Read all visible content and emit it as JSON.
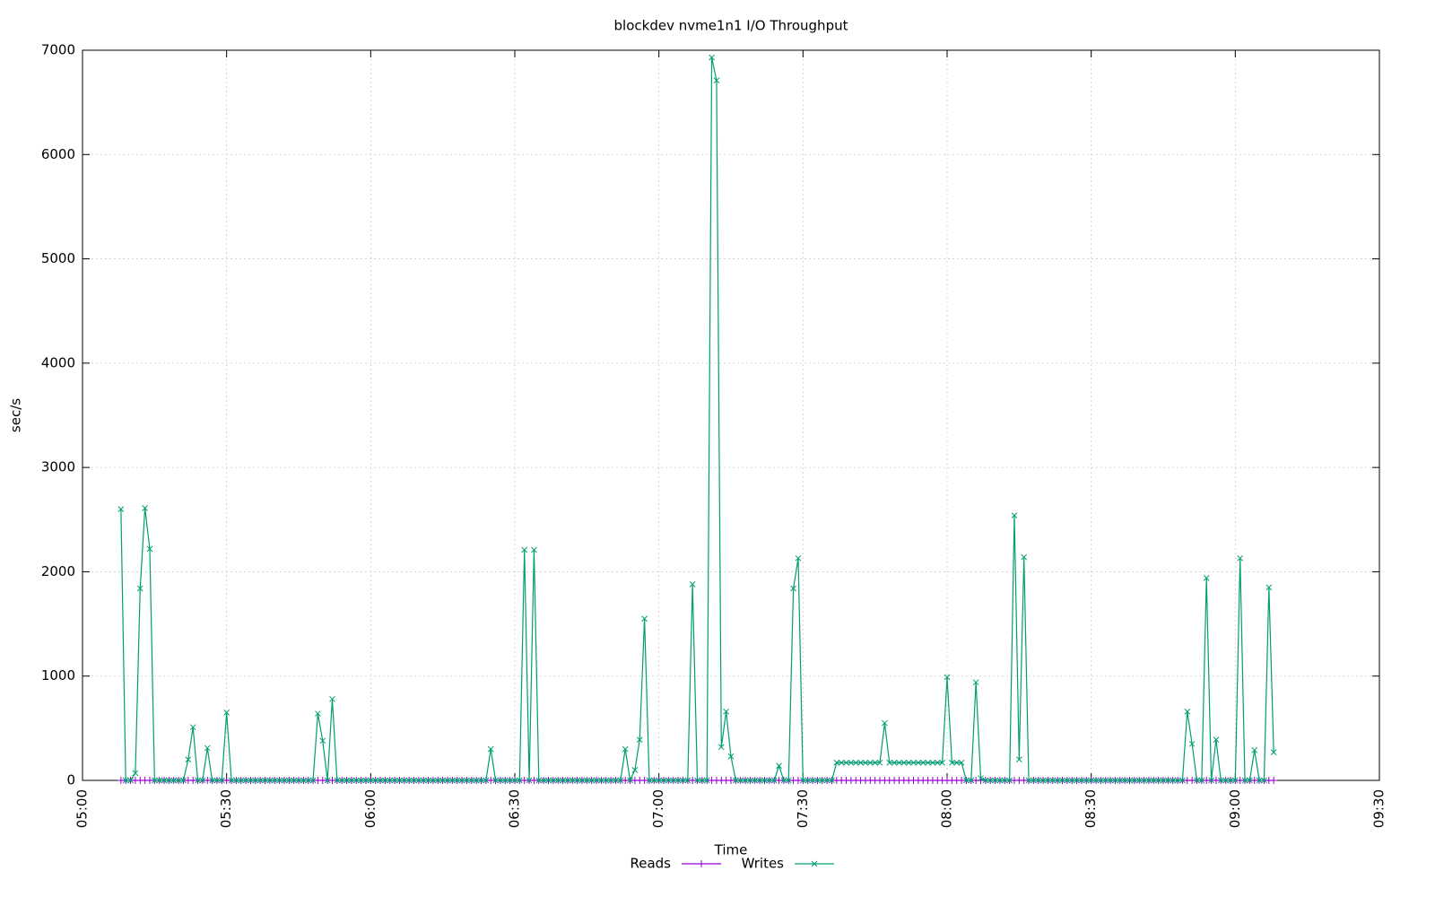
{
  "chart_data": {
    "type": "line",
    "title": "blockdev nvme1n1 I/O Throughput",
    "x_label": "Time",
    "y_label": "sec/s",
    "xlim": [
      "05:00",
      "09:30"
    ],
    "xticks": [
      "05:00",
      "05:30",
      "06:00",
      "06:30",
      "07:00",
      "07:30",
      "08:00",
      "08:30",
      "09:00",
      "09:30"
    ],
    "ylim": [
      0,
      7000
    ],
    "yticks": [
      0,
      1000,
      2000,
      3000,
      4000,
      5000,
      6000,
      7000
    ],
    "grid": true,
    "legend": "bottom",
    "x": [
      "05:08",
      "05:09",
      "05:10",
      "05:11",
      "05:12",
      "05:13",
      "05:14",
      "05:15",
      "05:16",
      "05:17",
      "05:18",
      "05:19",
      "05:20",
      "05:21",
      "05:22",
      "05:23",
      "05:24",
      "05:25",
      "05:26",
      "05:27",
      "05:28",
      "05:29",
      "05:30",
      "05:31",
      "05:32",
      "05:33",
      "05:34",
      "05:35",
      "05:36",
      "05:37",
      "05:38",
      "05:39",
      "05:40",
      "05:41",
      "05:42",
      "05:43",
      "05:44",
      "05:45",
      "05:46",
      "05:47",
      "05:48",
      "05:49",
      "05:50",
      "05:51",
      "05:52",
      "05:53",
      "05:54",
      "05:55",
      "05:56",
      "05:57",
      "05:58",
      "05:59",
      "06:00",
      "06:01",
      "06:02",
      "06:03",
      "06:04",
      "06:05",
      "06:06",
      "06:07",
      "06:08",
      "06:09",
      "06:10",
      "06:11",
      "06:12",
      "06:13",
      "06:14",
      "06:15",
      "06:16",
      "06:17",
      "06:18",
      "06:19",
      "06:20",
      "06:21",
      "06:22",
      "06:23",
      "06:24",
      "06:25",
      "06:26",
      "06:27",
      "06:28",
      "06:29",
      "06:30",
      "06:31",
      "06:32",
      "06:33",
      "06:34",
      "06:35",
      "06:36",
      "06:37",
      "06:38",
      "06:39",
      "06:40",
      "06:41",
      "06:42",
      "06:43",
      "06:44",
      "06:45",
      "06:46",
      "06:47",
      "06:48",
      "06:49",
      "06:50",
      "06:51",
      "06:52",
      "06:53",
      "06:54",
      "06:55",
      "06:56",
      "06:57",
      "06:58",
      "06:59",
      "07:00",
      "07:01",
      "07:02",
      "07:03",
      "07:04",
      "07:05",
      "07:06",
      "07:07",
      "07:08",
      "07:09",
      "07:10",
      "07:11",
      "07:12",
      "07:13",
      "07:14",
      "07:15",
      "07:16",
      "07:17",
      "07:18",
      "07:19",
      "07:20",
      "07:21",
      "07:22",
      "07:23",
      "07:24",
      "07:25",
      "07:26",
      "07:27",
      "07:28",
      "07:29",
      "07:30",
      "07:31",
      "07:32",
      "07:33",
      "07:34",
      "07:35",
      "07:36",
      "07:37",
      "07:38",
      "07:39",
      "07:40",
      "07:41",
      "07:42",
      "07:43",
      "07:44",
      "07:45",
      "07:46",
      "07:47",
      "07:48",
      "07:49",
      "07:50",
      "07:51",
      "07:52",
      "07:53",
      "07:54",
      "07:55",
      "07:56",
      "07:57",
      "07:58",
      "07:59",
      "08:00",
      "08:01",
      "08:02",
      "08:03",
      "08:04",
      "08:05",
      "08:06",
      "08:07",
      "08:08",
      "08:09",
      "08:10",
      "08:11",
      "08:12",
      "08:13",
      "08:14",
      "08:15",
      "08:16",
      "08:17",
      "08:18",
      "08:19",
      "08:20",
      "08:21",
      "08:22",
      "08:23",
      "08:24",
      "08:25",
      "08:26",
      "08:27",
      "08:28",
      "08:29",
      "08:30",
      "08:31",
      "08:32",
      "08:33",
      "08:34",
      "08:35",
      "08:36",
      "08:37",
      "08:38",
      "08:39",
      "08:40",
      "08:41",
      "08:42",
      "08:43",
      "08:44",
      "08:45",
      "08:46",
      "08:47",
      "08:48",
      "08:49",
      "08:50",
      "08:51",
      "08:52",
      "08:53",
      "08:54",
      "08:55",
      "08:56",
      "08:57",
      "08:58",
      "08:59",
      "09:00",
      "09:01",
      "09:02",
      "09:03",
      "09:04",
      "09:05",
      "09:06",
      "09:07",
      "09:08"
    ],
    "series": [
      {
        "name": "Reads",
        "color": "#9400d3",
        "marker": "+",
        "values": [
          0,
          0,
          0,
          0,
          0,
          0,
          0,
          0,
          0,
          0,
          0,
          0,
          0,
          0,
          0,
          0,
          0,
          0,
          0,
          0,
          0,
          0,
          0,
          0,
          0,
          0,
          0,
          0,
          0,
          0,
          0,
          0,
          0,
          0,
          0,
          0,
          0,
          0,
          0,
          0,
          0,
          0,
          0,
          0,
          0,
          0,
          0,
          0,
          0,
          0,
          0,
          0,
          0,
          0,
          0,
          0,
          0,
          0,
          0,
          0,
          0,
          0,
          0,
          0,
          0,
          0,
          0,
          0,
          0,
          0,
          0,
          0,
          0,
          0,
          0,
          0,
          0,
          0,
          0,
          0,
          0,
          0,
          0,
          0,
          0,
          0,
          0,
          0,
          0,
          0,
          0,
          0,
          0,
          0,
          0,
          0,
          0,
          0,
          0,
          0,
          0,
          0,
          0,
          0,
          0,
          0,
          0,
          0,
          0,
          0,
          0,
          0,
          0,
          0,
          0,
          0,
          0,
          0,
          0,
          0,
          0,
          0,
          0,
          0,
          0,
          0,
          0,
          0,
          0,
          0,
          0,
          0,
          0,
          0,
          0,
          0,
          0,
          0,
          0,
          0,
          0,
          0,
          0,
          0,
          0,
          0,
          0,
          0,
          0,
          0,
          0,
          0,
          0,
          0,
          0,
          0,
          0,
          0,
          0,
          0,
          0,
          0,
          0,
          0,
          0,
          0,
          0,
          0,
          0,
          0,
          0,
          0,
          0,
          0,
          0,
          0,
          0,
          0,
          0,
          0,
          0,
          0,
          0,
          0,
          0,
          0,
          0,
          0,
          0,
          0,
          0,
          0,
          0,
          0,
          0,
          0,
          0,
          0,
          0,
          0,
          0,
          0,
          0,
          0,
          0,
          0,
          0,
          0,
          0,
          0,
          0,
          0,
          0,
          0,
          0,
          0,
          0,
          0,
          0,
          0,
          0,
          0,
          0,
          0,
          0,
          0,
          0,
          0,
          0,
          0,
          0,
          0,
          0,
          0,
          0,
          0,
          0,
          0,
          0,
          0,
          0
        ]
      },
      {
        "name": "Writes",
        "color": "#009e73",
        "marker": "x",
        "values": [
          2600,
          0,
          0,
          70,
          1840,
          2610,
          2220,
          0,
          0,
          0,
          0,
          0,
          0,
          0,
          200,
          510,
          0,
          0,
          310,
          0,
          0,
          0,
          650,
          0,
          0,
          0,
          0,
          0,
          0,
          0,
          0,
          0,
          0,
          0,
          0,
          0,
          0,
          0,
          0,
          0,
          0,
          640,
          380,
          0,
          780,
          0,
          0,
          0,
          0,
          0,
          0,
          0,
          0,
          0,
          0,
          0,
          0,
          0,
          0,
          0,
          0,
          0,
          0,
          0,
          0,
          0,
          0,
          0,
          0,
          0,
          0,
          0,
          0,
          0,
          0,
          0,
          0,
          300,
          0,
          0,
          0,
          0,
          0,
          0,
          2210,
          0,
          2210,
          0,
          0,
          0,
          0,
          0,
          0,
          0,
          0,
          0,
          0,
          0,
          0,
          0,
          0,
          0,
          0,
          0,
          0,
          300,
          0,
          100,
          390,
          1550,
          0,
          0,
          0,
          0,
          0,
          0,
          0,
          0,
          0,
          1880,
          0,
          0,
          0,
          6930,
          6710,
          320,
          660,
          230,
          0,
          0,
          0,
          0,
          0,
          0,
          0,
          0,
          0,
          140,
          0,
          0,
          1840,
          2130,
          0,
          0,
          0,
          0,
          0,
          0,
          0,
          170,
          170,
          170,
          170,
          170,
          170,
          170,
          170,
          170,
          170,
          550,
          170,
          170,
          170,
          170,
          170,
          170,
          170,
          170,
          170,
          170,
          170,
          170,
          990,
          170,
          170,
          170,
          0,
          0,
          940,
          20,
          0,
          0,
          0,
          0,
          0,
          0,
          2540,
          200,
          2140,
          0,
          0,
          0,
          0,
          0,
          0,
          0,
          0,
          0,
          0,
          0,
          0,
          0,
          0,
          0,
          0,
          0,
          0,
          0,
          0,
          0,
          0,
          0,
          0,
          0,
          0,
          0,
          0,
          0,
          0,
          0,
          0,
          0,
          660,
          350,
          0,
          0,
          1940,
          0,
          390,
          0,
          0,
          0,
          0,
          2130,
          0,
          0,
          290,
          0,
          0,
          1850,
          270
        ]
      }
    ]
  }
}
